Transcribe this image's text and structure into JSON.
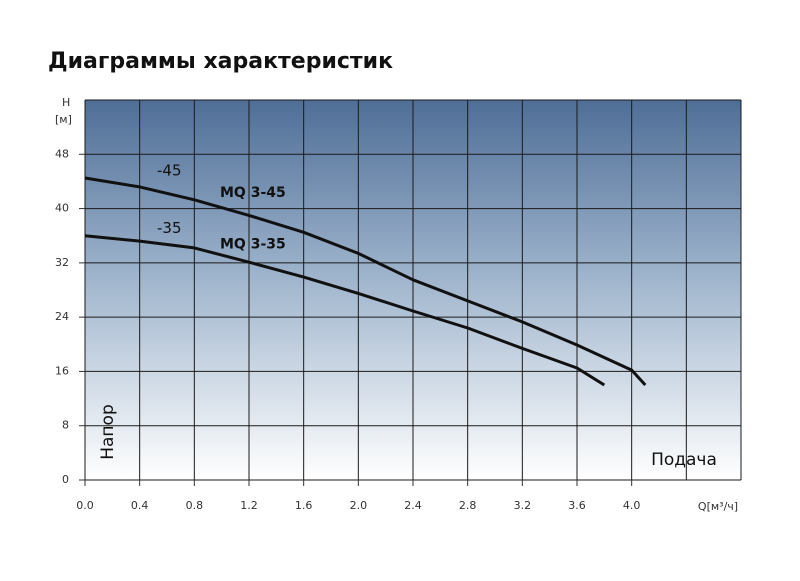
{
  "chart_data": {
    "type": "line",
    "title": "Диаграммы характеристик",
    "y_label_unit_top": "H",
    "y_label_unit": "[м]",
    "y_label": "Напор",
    "x_label": "Подача",
    "x_label_unit": "Q[м³/ч]",
    "xlim": [
      0,
      4.8
    ],
    "ylim": [
      0,
      56
    ],
    "xticks": [
      {
        "value": 0,
        "label": "0.0"
      },
      0.4,
      0.8,
      1.2,
      1.6,
      {
        "value": 2,
        "label": "2.0"
      },
      2.4,
      2.8,
      3.2,
      3.6,
      {
        "value": 4,
        "label": "4.0"
      }
    ],
    "yticks": [
      0,
      8,
      16,
      24,
      32,
      40,
      48
    ],
    "xgrid": [
      0,
      0.4,
      0.8,
      1.2,
      1.6,
      2,
      2.4,
      2.8,
      3.2,
      3.6,
      4,
      4.4,
      4.8
    ],
    "ygrid": [
      0,
      8,
      16,
      24,
      32,
      40,
      48,
      56
    ],
    "grid": true,
    "series": [
      {
        "name": "MQ 3-45",
        "tag": "-45",
        "color": "#111111",
        "x": [
          0,
          0.4,
          0.8,
          1.2,
          1.6,
          2.0,
          2.4,
          2.8,
          3.2,
          3.6,
          4.0,
          4.1
        ],
        "values": [
          44.5,
          43.2,
          41.3,
          39.0,
          36.5,
          33.4,
          29.5,
          26.4,
          23.3,
          19.9,
          16.2,
          14.0
        ]
      },
      {
        "name": "MQ 3-35",
        "tag": "-35",
        "color": "#111111",
        "x": [
          0,
          0.4,
          0.8,
          1.2,
          1.6,
          2.0,
          2.4,
          2.8,
          3.2,
          3.6,
          3.8
        ],
        "values": [
          36.0,
          35.2,
          34.2,
          32.1,
          29.9,
          27.5,
          24.9,
          22.4,
          19.4,
          16.5,
          14.0
        ]
      }
    ]
  }
}
